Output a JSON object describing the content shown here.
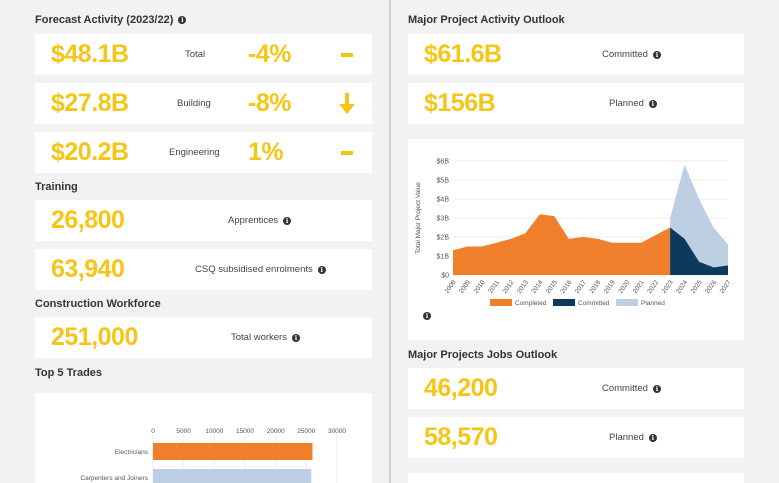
{
  "forecast": {
    "title": "Forecast Activity (2023/22)",
    "rows": [
      {
        "value": "$48.1B",
        "label": "Total",
        "change": "-4%",
        "trend_icon": "dash-icon"
      },
      {
        "value": "$27.8B",
        "label": "Building",
        "change": "-8%",
        "trend_icon": "arrow-down-icon"
      },
      {
        "value": "$20.2B",
        "label": "Engineering",
        "change": "1%",
        "trend_icon": "dash-icon"
      }
    ]
  },
  "training": {
    "title": "Training",
    "rows": [
      {
        "value": "26,800",
        "label": "Apprentices"
      },
      {
        "value": "63,940",
        "label": "CSQ subsidised enrolments"
      }
    ]
  },
  "workforce": {
    "title": "Construction Workforce",
    "value": "251,000",
    "label": "Total workers"
  },
  "trades": {
    "title": "Top 5 Trades"
  },
  "outlook": {
    "title": "Major Project Activity Outlook",
    "rows": [
      {
        "value": "$61.6B",
        "label": "Committed"
      },
      {
        "value": "$156B",
        "label": "Planned"
      }
    ]
  },
  "jobs": {
    "title": "Major Projects Jobs Outlook",
    "rows": [
      {
        "value": "46,200",
        "label": "Committed"
      },
      {
        "value": "58,570",
        "label": "Planned"
      }
    ]
  },
  "colors": {
    "accent": "#f5c518",
    "completed": "#f07f2b",
    "committed": "#0d3a5c",
    "planned": "#bccfe3"
  },
  "chart_data": [
    {
      "type": "area",
      "title": "",
      "xlabel": "",
      "ylabel": "Total Major Project Value",
      "x": [
        "2008",
        "2009",
        "2010",
        "2011",
        "2012",
        "2013",
        "2014",
        "2015",
        "2016",
        "2017",
        "2018",
        "2019",
        "2020",
        "2021",
        "2022",
        "2023",
        "2024",
        "2025",
        "2026",
        "2027"
      ],
      "y_ticks": [
        "$0",
        "$1B",
        "$2B",
        "$3B",
        "$4B",
        "$5B",
        "$6B"
      ],
      "ylim": [
        0,
        6
      ],
      "series": [
        {
          "name": "Completed",
          "values": [
            1.3,
            1.5,
            1.5,
            1.7,
            1.9,
            2.2,
            3.2,
            3.1,
            1.9,
            2.0,
            1.9,
            1.7,
            1.7,
            1.7,
            2.1,
            0,
            0,
            0,
            0,
            0
          ]
        },
        {
          "name": "Committed",
          "values": [
            0,
            0,
            0,
            0,
            0,
            0,
            0,
            0,
            0,
            0,
            0,
            0,
            0,
            0,
            0,
            2.5,
            1.9,
            0.7,
            0.4,
            0.5
          ]
        },
        {
          "name": "Planned",
          "values": [
            0,
            0,
            0,
            0,
            0,
            0,
            0,
            0,
            0,
            0,
            0,
            0,
            0,
            0,
            0,
            3.0,
            5.8,
            4.0,
            2.5,
            1.6
          ]
        }
      ],
      "legend": "bottom"
    },
    {
      "type": "bar",
      "orientation": "horizontal",
      "title": "",
      "x_ticks": [
        "0",
        "5000",
        "10000",
        "15000",
        "20000",
        "25000",
        "30000"
      ],
      "xlim": [
        0,
        30000
      ],
      "categories": [
        "Electricians",
        "Carpenters and Joiners"
      ],
      "values": [
        26000,
        25800
      ],
      "bar_colors": [
        "#f07f2b",
        "#bccfe3"
      ]
    }
  ]
}
